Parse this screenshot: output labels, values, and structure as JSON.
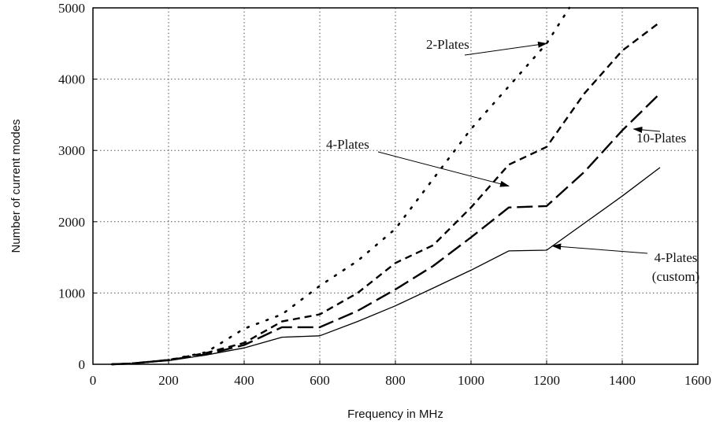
{
  "chart_data": {
    "type": "line",
    "title": "",
    "xlabel": "Frequency in MHz",
    "ylabel": "Number of current modes",
    "xlim": [
      0,
      1600
    ],
    "ylim": [
      0,
      5000
    ],
    "x_ticks": [
      0,
      200,
      400,
      600,
      800,
      1000,
      1200,
      1400,
      1600
    ],
    "y_ticks": [
      0,
      1000,
      2000,
      3000,
      4000,
      5000
    ],
    "x_tick_labels": [
      "0",
      "200",
      "400",
      "600",
      "800",
      "1000",
      "1200",
      "1400",
      "1600"
    ],
    "y_tick_labels": [
      "0",
      "1000",
      "2000",
      "3000",
      "4000",
      "5000"
    ],
    "grid": true,
    "legend": "none",
    "series": [
      {
        "name": "2-Plates",
        "style": "dotted",
        "x": [
          50,
          100,
          200,
          300,
          400,
          500,
          600,
          700,
          800,
          900,
          1000,
          1100,
          1200,
          1260
        ],
        "y": [
          0,
          10,
          60,
          170,
          500,
          700,
          1100,
          1450,
          1900,
          2600,
          3300,
          3900,
          4500,
          5000
        ]
      },
      {
        "name": "4-Plates",
        "style": "short-dash",
        "x": [
          50,
          100,
          200,
          300,
          400,
          500,
          600,
          700,
          800,
          900,
          1000,
          1100,
          1200,
          1300,
          1400,
          1500
        ],
        "y": [
          0,
          10,
          60,
          160,
          300,
          600,
          700,
          1000,
          1420,
          1670,
          2200,
          2800,
          3050,
          3800,
          4400,
          4800
        ]
      },
      {
        "name": "10-Plates",
        "style": "long-dash",
        "x": [
          50,
          100,
          200,
          300,
          400,
          500,
          600,
          700,
          800,
          900,
          1000,
          1100,
          1200,
          1300,
          1400,
          1500
        ],
        "y": [
          0,
          10,
          60,
          140,
          270,
          520,
          520,
          750,
          1050,
          1380,
          1780,
          2200,
          2220,
          2700,
          3280,
          3800
        ]
      },
      {
        "name": "4-Plates (custom)",
        "style": "solid",
        "x": [
          50,
          100,
          200,
          300,
          400,
          500,
          600,
          700,
          800,
          900,
          1000,
          1100,
          1200,
          1300,
          1400,
          1500
        ],
        "y": [
          0,
          10,
          50,
          130,
          230,
          380,
          400,
          600,
          820,
          1070,
          1320,
          1590,
          1600,
          1980,
          2360,
          2760
        ]
      }
    ],
    "annotations": [
      {
        "text": "2-Plates",
        "target_series": "2-Plates"
      },
      {
        "text": "4-Plates",
        "target_series": "4-Plates"
      },
      {
        "text": "10-Plates",
        "target_series": "10-Plates"
      },
      {
        "text_lines": [
          "4-Plates",
          "(custom)"
        ],
        "target_series": "4-Plates (custom)"
      }
    ]
  }
}
